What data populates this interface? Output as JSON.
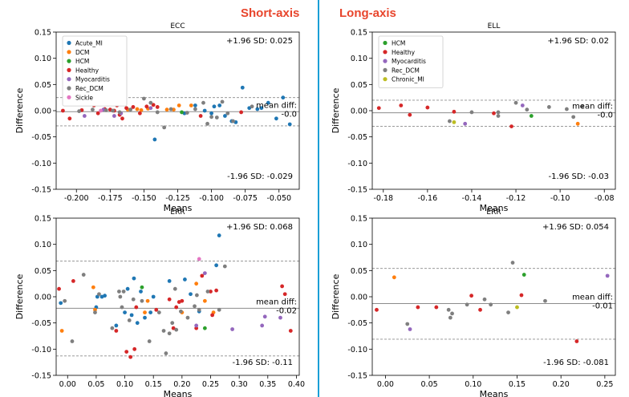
{
  "figure": {
    "left_heading": "Short-axis",
    "right_heading": "Long-axis",
    "colors": {
      "Acute_MI": "#1f77b4",
      "DCM": "#ff7f0e",
      "HCM": "#2ca02c",
      "Healthy": "#d62728",
      "Myocarditis": "#9467bd",
      "Rec_DCM": "#7f7f7f",
      "Sickle": "#e377c2",
      "Chronic_MI": "#bcbd22",
      "divider": "#1a9fd6",
      "heading": "#e8452c"
    }
  },
  "chart_data": [
    {
      "id": "sa-ecc",
      "type": "scatter",
      "title": "ECC",
      "xlabel": "Means",
      "ylabel": "Difference",
      "xlim": [
        -0.215,
        -0.035
      ],
      "ylim": [
        -0.15,
        0.15
      ],
      "xticks": [
        -0.2,
        -0.175,
        -0.15,
        -0.125,
        -0.1,
        -0.075,
        -0.05
      ],
      "xtick_labels": [
        "-0.200",
        "-0.175",
        "-0.150",
        "-0.125",
        "-0.100",
        "-0.075",
        "-0.050"
      ],
      "yticks": [
        -0.15,
        -0.1,
        -0.05,
        0.0,
        0.05,
        0.1,
        0.15
      ],
      "ytick_labels": [
        "-0.15",
        "-0.10",
        "-0.05",
        "0.00",
        "0.05",
        "0.10",
        "0.15"
      ],
      "mean_diff": -0.002,
      "upper_loa": 0.025,
      "lower_loa": -0.029,
      "upper_label": "+1.96 SD: 0.025",
      "mean_label_1": "mean diff:",
      "mean_label_2": "-0.0",
      "lower_label": "-1.96 SD: -0.029",
      "legend": {
        "position": "top-left",
        "entries": [
          "Acute_MI",
          "DCM",
          "HCM",
          "Healthy",
          "Myocarditis",
          "Rec_DCM",
          "Sickle"
        ]
      },
      "series": [
        {
          "name": "Acute_MI",
          "x": [
            -0.142,
            -0.12,
            -0.112,
            -0.105,
            -0.1,
            -0.098,
            -0.094,
            -0.09,
            -0.085,
            -0.082,
            -0.077,
            -0.072,
            -0.066,
            -0.063,
            -0.058,
            -0.052,
            -0.047,
            -0.042
          ],
          "y": [
            -0.055,
            -0.005,
            0.01,
            0.0,
            -0.005,
            0.008,
            0.01,
            -0.01,
            -0.02,
            -0.022,
            0.044,
            0.005,
            0.003,
            0.005,
            0.015,
            -0.015,
            0.025,
            -0.026
          ]
        },
        {
          "name": "DCM",
          "x": [
            -0.162,
            -0.155,
            -0.152,
            -0.147,
            -0.133,
            -0.128,
            -0.124,
            -0.115
          ],
          "y": [
            0.002,
            0.003,
            0.001,
            0.004,
            0.002,
            0.002,
            0.01,
            0.01
          ]
        },
        {
          "name": "HCM",
          "x": [
            -0.122
          ],
          "y": [
            -0.003
          ]
        },
        {
          "name": "Healthy",
          "x": [
            -0.21,
            -0.205,
            -0.196,
            -0.19,
            -0.187,
            -0.184,
            -0.179,
            -0.175,
            -0.172,
            -0.17,
            -0.168,
            -0.166,
            -0.163,
            -0.158,
            -0.153,
            -0.148,
            -0.143,
            -0.14,
            -0.108,
            -0.078
          ],
          "y": [
            0.0,
            -0.015,
            0.001,
            0.016,
            0.01,
            -0.005,
            0.003,
            0.002,
            0.0,
            0.01,
            -0.008,
            -0.015,
            0.005,
            0.007,
            -0.005,
            0.008,
            0.011,
            0.007,
            -0.01,
            -0.003
          ]
        },
        {
          "name": "Myocarditis",
          "x": [
            -0.194,
            -0.18,
            -0.172,
            -0.167,
            -0.145
          ],
          "y": [
            -0.01,
            0.002,
            -0.01,
            -0.005,
            0.005
          ]
        },
        {
          "name": "Rec_DCM",
          "x": [
            -0.198,
            -0.188,
            -0.178,
            -0.173,
            -0.168,
            -0.16,
            -0.15,
            -0.145,
            -0.14,
            -0.135,
            -0.13,
            -0.118,
            -0.112,
            -0.106,
            -0.103,
            -0.1,
            -0.096,
            -0.092,
            -0.088,
            -0.084,
            -0.07
          ],
          "y": [
            -0.001,
            0.002,
            0.001,
            0.0,
            -0.003,
            0.002,
            0.023,
            0.015,
            -0.003,
            -0.032,
            0.003,
            -0.004,
            0.003,
            0.015,
            -0.025,
            -0.012,
            -0.013,
            0.017,
            -0.005,
            -0.02,
            0.008
          ]
        },
        {
          "name": "Sickle",
          "x": [
            -0.182
          ],
          "y": [
            0.0
          ]
        }
      ]
    },
    {
      "id": "sa-err",
      "type": "scatter",
      "title": "ERR",
      "xlabel": "Means",
      "ylabel": "Difference",
      "xlim": [
        -0.02,
        0.405
      ],
      "ylim": [
        -0.15,
        0.15
      ],
      "xticks": [
        0.0,
        0.05,
        0.1,
        0.15,
        0.2,
        0.25,
        0.3,
        0.35,
        0.4
      ],
      "xtick_labels": [
        "0.00",
        "0.05",
        "0.10",
        "0.15",
        "0.20",
        "0.25",
        "0.30",
        "0.35",
        "0.40"
      ],
      "yticks": [
        -0.15,
        -0.1,
        -0.05,
        0.0,
        0.05,
        0.1,
        0.15
      ],
      "ytick_labels": [
        "-0.15",
        "-0.10",
        "-0.05",
        "0.00",
        "0.05",
        "0.10",
        "0.15"
      ],
      "mean_diff": -0.022,
      "upper_loa": 0.068,
      "lower_loa": -0.113,
      "upper_label": "+1.96 SD: 0.068",
      "mean_label_1": "mean diff:",
      "mean_label_2": "-0.02",
      "lower_label": "-1.96 SD: -0.11",
      "legend": null,
      "series": [
        {
          "name": "Acute_MI",
          "x": [
            -0.012,
            0.05,
            0.052,
            0.06,
            0.065,
            0.085,
            0.1,
            0.105,
            0.112,
            0.116,
            0.122,
            0.128,
            0.135,
            0.145,
            0.15,
            0.178,
            0.205,
            0.215,
            0.23,
            0.26,
            0.265
          ],
          "y": [
            -0.012,
            -0.02,
            0.0,
            0.0,
            0.002,
            -0.055,
            -0.03,
            0.015,
            -0.035,
            0.035,
            -0.05,
            0.01,
            -0.04,
            -0.03,
            0.0,
            0.03,
            0.033,
            0.005,
            -0.028,
            0.06,
            0.117
          ]
        },
        {
          "name": "DCM",
          "x": [
            -0.01,
            0.045,
            0.048,
            0.135,
            0.14,
            0.2,
            0.225,
            0.24,
            0.255
          ],
          "y": [
            -0.065,
            0.018,
            -0.025,
            -0.03,
            -0.008,
            -0.03,
            0.025,
            -0.008,
            -0.03
          ]
        },
        {
          "name": "HCM",
          "x": [
            0.13,
            0.24
          ],
          "y": [
            0.018,
            -0.06
          ]
        },
        {
          "name": "Healthy",
          "x": [
            -0.015,
            0.01,
            0.085,
            0.103,
            0.11,
            0.117,
            0.12,
            0.155,
            0.178,
            0.185,
            0.19,
            0.195,
            0.2,
            0.225,
            0.235,
            0.25,
            0.253,
            0.26,
            0.375,
            0.38,
            0.39
          ],
          "y": [
            0.015,
            0.03,
            -0.065,
            -0.105,
            -0.115,
            -0.1,
            -0.02,
            -0.025,
            -0.005,
            -0.06,
            -0.02,
            -0.01,
            -0.008,
            -0.06,
            0.04,
            0.01,
            -0.035,
            0.012,
            0.02,
            0.005,
            -0.065
          ]
        },
        {
          "name": "Myocarditis",
          "x": [
            0.225,
            0.24,
            0.288,
            0.34,
            0.345,
            0.372
          ],
          "y": [
            -0.055,
            0.045,
            -0.062,
            -0.055,
            -0.038,
            -0.04
          ]
        },
        {
          "name": "Rec_DCM",
          "x": [
            -0.005,
            0.008,
            0.028,
            0.048,
            0.055,
            0.078,
            0.09,
            0.092,
            0.095,
            0.098,
            0.108,
            0.115,
            0.13,
            0.143,
            0.16,
            0.168,
            0.172,
            0.178,
            0.183,
            0.188,
            0.19,
            0.198,
            0.21,
            0.222,
            0.226,
            0.23,
            0.245,
            0.265,
            0.275
          ],
          "y": [
            -0.008,
            -0.085,
            0.042,
            -0.03,
            0.005,
            -0.06,
            0.01,
            0.0,
            -0.02,
            0.01,
            -0.045,
            -0.005,
            -0.008,
            -0.085,
            -0.03,
            -0.065,
            -0.108,
            -0.07,
            -0.05,
            0.015,
            -0.063,
            -0.028,
            -0.04,
            -0.018,
            0.003,
            -0.025,
            0.01,
            -0.025,
            0.058
          ]
        },
        {
          "name": "Sickle",
          "x": [
            0.23
          ],
          "y": [
            0.072
          ]
        }
      ]
    },
    {
      "id": "la-ell",
      "type": "scatter",
      "title": "ELL",
      "xlabel": "Means",
      "ylabel": "Difference",
      "xlim": [
        -0.185,
        -0.075
      ],
      "ylim": [
        -0.15,
        0.15
      ],
      "xticks": [
        -0.18,
        -0.16,
        -0.14,
        -0.12,
        -0.1,
        -0.08
      ],
      "xtick_labels": [
        "-0.18",
        "-0.16",
        "-0.14",
        "-0.12",
        "-0.10",
        "-0.08"
      ],
      "yticks": [
        -0.15,
        -0.1,
        -0.05,
        0.0,
        0.05,
        0.1,
        0.15
      ],
      "ytick_labels": [
        "-0.15",
        "-0.10",
        "-0.05",
        "0.00",
        "0.05",
        "0.10",
        "0.15"
      ],
      "mean_diff": -0.004,
      "upper_loa": 0.02,
      "lower_loa": -0.03,
      "upper_label": "+1.96 SD: 0.02",
      "mean_label_1": "mean diff:",
      "mean_label_2": "-0.0",
      "lower_label": "-1.96 SD: -0.03",
      "legend": {
        "position": "top-left",
        "entries": [
          "HCM",
          "Healthy",
          "Myocarditis",
          "Rec_DCM",
          "Chronic_MI"
        ]
      },
      "series": [
        {
          "name": "HCM",
          "x": [
            -0.113
          ],
          "y": [
            -0.01
          ]
        },
        {
          "name": "Healthy",
          "x": [
            -0.182,
            -0.172,
            -0.168,
            -0.16,
            -0.148,
            -0.13,
            -0.122
          ],
          "y": [
            0.005,
            0.01,
            -0.008,
            0.006,
            -0.002,
            -0.005,
            -0.03
          ]
        },
        {
          "name": "Myocarditis",
          "x": [
            -0.143,
            -0.117
          ],
          "y": [
            -0.025,
            0.01
          ]
        },
        {
          "name": "Rec_DCM",
          "x": [
            -0.15,
            -0.14,
            -0.128,
            -0.12,
            -0.115,
            -0.105,
            -0.097,
            -0.094,
            -0.09,
            -0.128
          ],
          "y": [
            -0.02,
            -0.003,
            -0.01,
            0.015,
            0.002,
            0.007,
            0.003,
            -0.012,
            0.008,
            -0.003
          ]
        },
        {
          "name": "Chronic_MI",
          "x": [
            -0.148
          ],
          "y": [
            -0.022
          ]
        },
        {
          "name": "DCM",
          "x": [
            -0.092
          ],
          "y": [
            -0.025
          ]
        }
      ]
    },
    {
      "id": "la-err",
      "type": "scatter",
      "title": "ERR",
      "xlabel": "Means",
      "ylabel": "Difference",
      "xlim": [
        -0.015,
        0.262
      ],
      "ylim": [
        -0.15,
        0.15
      ],
      "xticks": [
        0.0,
        0.05,
        0.1,
        0.15,
        0.2,
        0.25
      ],
      "xtick_labels": [
        "0.00",
        "0.05",
        "0.10",
        "0.15",
        "0.20",
        "0.25"
      ],
      "yticks": [
        -0.15,
        -0.1,
        -0.05,
        0.0,
        0.05,
        0.1,
        0.15
      ],
      "ytick_labels": [
        "-0.15",
        "-0.10",
        "-0.05",
        "0.00",
        "0.05",
        "0.10",
        "0.15"
      ],
      "mean_diff": -0.013,
      "upper_loa": 0.054,
      "lower_loa": -0.081,
      "upper_label": "+1.96 SD: 0.054",
      "mean_label_1": "mean diff:",
      "mean_label_2": "-0.01",
      "lower_label": "-1.96 SD: -0.081",
      "legend": null,
      "series": [
        {
          "name": "DCM",
          "x": [
            0.01
          ],
          "y": [
            0.037
          ]
        },
        {
          "name": "Healthy",
          "x": [
            -0.01,
            0.037,
            0.058,
            0.098,
            0.108,
            0.155,
            0.218
          ],
          "y": [
            -0.025,
            -0.02,
            -0.02,
            0.002,
            -0.025,
            0.003,
            -0.085
          ]
        },
        {
          "name": "Myocarditis",
          "x": [
            0.028,
            0.253
          ],
          "y": [
            -0.062,
            0.04
          ]
        },
        {
          "name": "Rec_DCM",
          "x": [
            0.025,
            0.072,
            0.074,
            0.076,
            0.093,
            0.113,
            0.12,
            0.14,
            0.145,
            0.182
          ],
          "y": [
            -0.052,
            -0.025,
            -0.04,
            -0.032,
            -0.015,
            -0.005,
            -0.015,
            -0.03,
            0.065,
            -0.008
          ]
        },
        {
          "name": "HCM",
          "x": [
            0.158
          ],
          "y": [
            0.042
          ]
        },
        {
          "name": "Chronic_MI",
          "x": [
            0.15
          ],
          "y": [
            -0.02
          ]
        }
      ]
    }
  ]
}
